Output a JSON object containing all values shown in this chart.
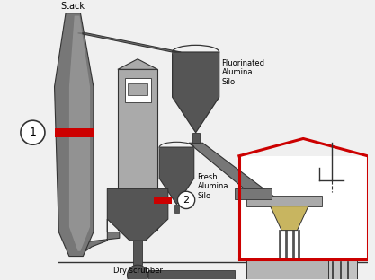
{
  "bg_color": "#f0f0f0",
  "dark_gray": "#555555",
  "mid_gray": "#777777",
  "light_gray": "#aaaaaa",
  "red": "#cc0000",
  "tan": "#c8b560",
  "outline": "#333333",
  "white": "#ffffff",
  "silver": "#b0b0b0",
  "labels": {
    "stack": "Stack",
    "dry_scrubber": "Dry scrubber",
    "fluorinated_alumina_silo": "Fluorinated\nAlumina\nSilo",
    "fresh_alumina_silo": "Fresh\nAlumina\nSilo",
    "label1": "1",
    "label2": "2"
  },
  "figsize": [
    4.17,
    3.12
  ],
  "dpi": 100
}
